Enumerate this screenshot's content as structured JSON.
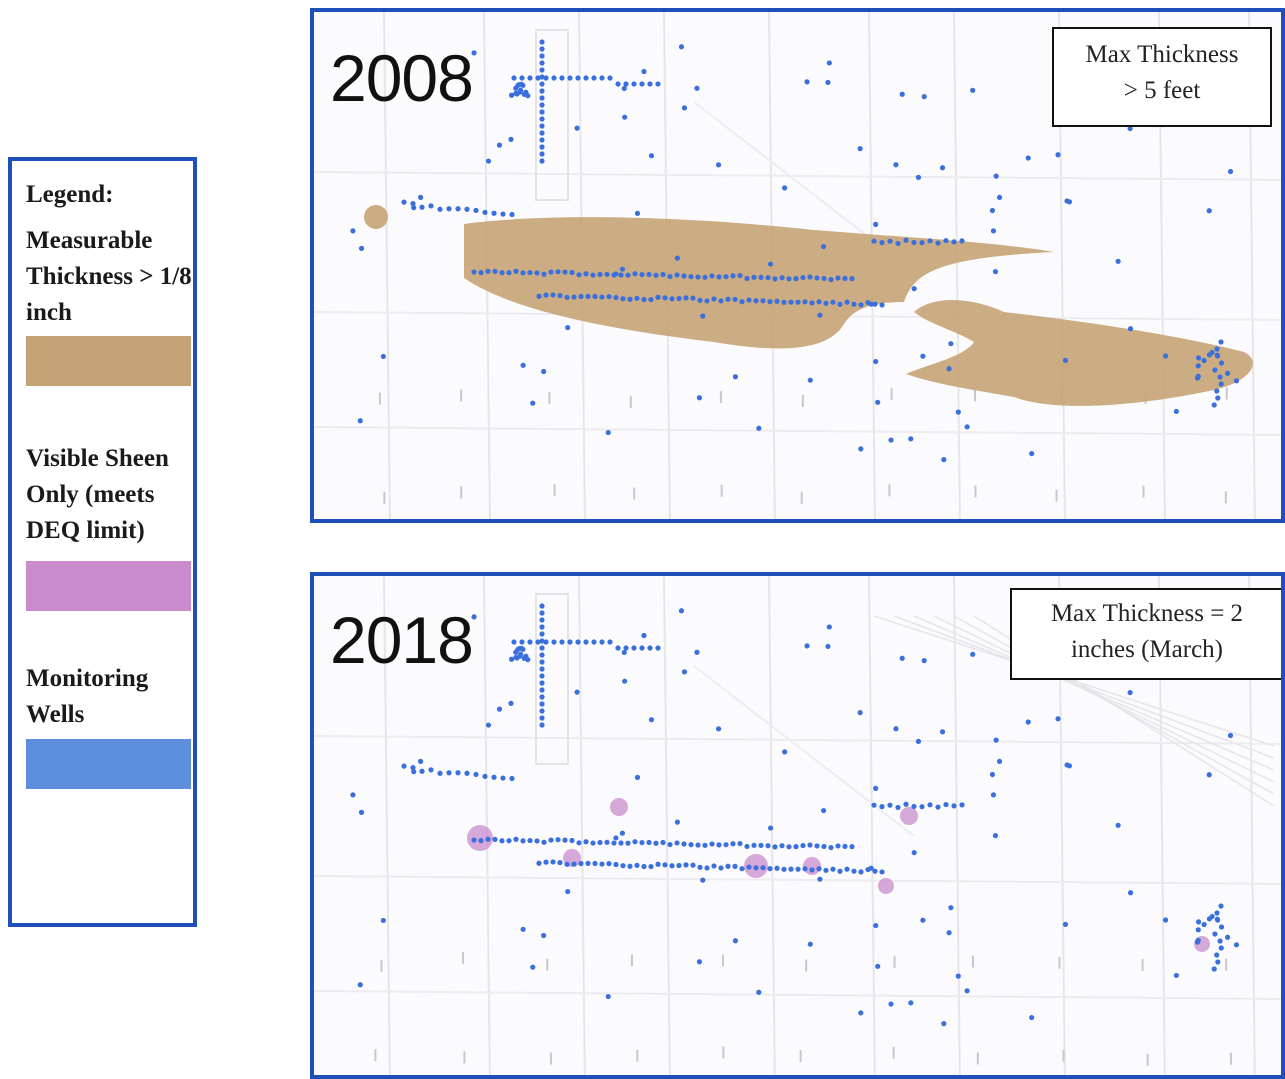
{
  "legend": {
    "title": "Legend:",
    "items": [
      {
        "label": "Measurable Thickness > 1/8 inch",
        "color": "#c5a375"
      },
      {
        "label": "Visible Sheen Only (meets DEQ limit)",
        "color": "#c98bcc"
      },
      {
        "label": "Monitoring Wells",
        "color": "#5d8fdc"
      }
    ]
  },
  "maps": [
    {
      "year": "2008",
      "info_line1": "Max Thickness",
      "info_line2": "> 5 feet"
    },
    {
      "year": "2018",
      "info_line1": "Max Thickness = 2",
      "info_line2": "inches (March)"
    }
  ],
  "colors": {
    "frame": "#1f4fb8",
    "plume": "#c5a375",
    "sheen": "#c98bcc",
    "wells": "#3a6fdc"
  }
}
